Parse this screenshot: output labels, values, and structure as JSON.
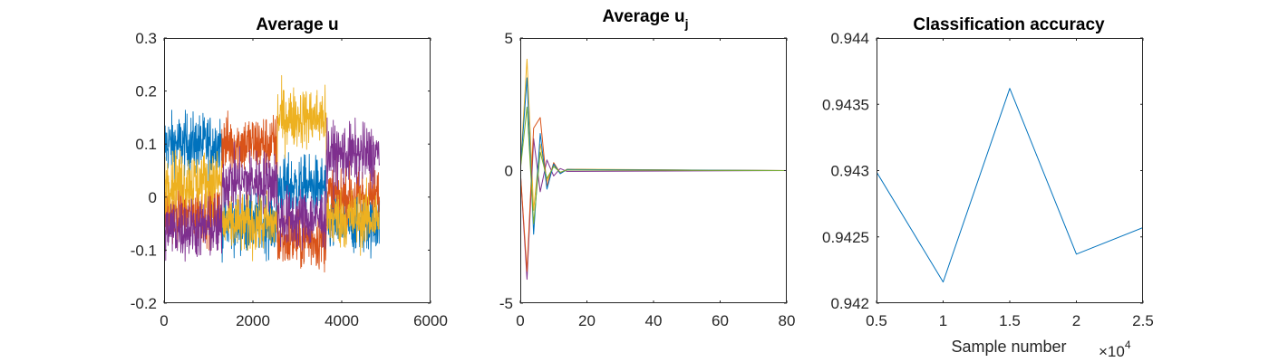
{
  "chart_data": [
    {
      "type": "line",
      "title": "Average u",
      "xlim": [
        0,
        6000
      ],
      "ylim": [
        -0.2,
        0.3
      ],
      "xticks": [
        "0",
        "2000",
        "4000",
        "6000"
      ],
      "yticks": [
        "-0.2",
        "-0.1",
        "0",
        "0.1",
        "0.2",
        "0.3"
      ],
      "grid": false,
      "note": "four noisy series, each switching level at x ≈ 1300, 2550 and 3650; x runs 0–4850",
      "series": [
        {
          "color": "#0072BD",
          "x": [
            0,
            1300,
            2550,
            3650,
            4850
          ],
          "y": [
            0.1,
            -0.05,
            0.02,
            -0.05,
            -0.05
          ]
        },
        {
          "color": "#D95319",
          "x": [
            0,
            1300,
            2550,
            3650,
            4850
          ],
          "y": [
            -0.03,
            0.1,
            -0.08,
            0.0,
            0.0
          ]
        },
        {
          "color": "#EDB120",
          "x": [
            0,
            1300,
            2550,
            3650,
            4850
          ],
          "y": [
            0.03,
            -0.05,
            0.15,
            -0.04,
            -0.04
          ]
        },
        {
          "color": "#7E2F8E",
          "x": [
            0,
            1300,
            2550,
            3650,
            4850
          ],
          "y": [
            -0.06,
            0.03,
            -0.04,
            0.08,
            0.08
          ]
        }
      ]
    },
    {
      "type": "line",
      "title": "Average u",
      "title_subscript": "j",
      "xlim": [
        0,
        80
      ],
      "ylim": [
        -5,
        5
      ],
      "xticks": [
        "0",
        "20",
        "40",
        "60",
        "80"
      ],
      "yticks": [
        "-5",
        "0",
        "5"
      ],
      "grid": false,
      "series": [
        {
          "color": "#EDB120",
          "x": [
            0,
            2,
            4,
            6,
            8,
            10,
            12,
            14,
            80
          ],
          "y": [
            0,
            4.2,
            -1.5,
            1.0,
            -0.4,
            0.2,
            -0.1,
            0.05,
            0
          ]
        },
        {
          "color": "#7E2F8E",
          "x": [
            0,
            2,
            4,
            6,
            8,
            10,
            12,
            14,
            80
          ],
          "y": [
            0,
            -4.1,
            1.2,
            -0.8,
            0.4,
            -0.2,
            0.08,
            -0.03,
            0
          ]
        },
        {
          "color": "#D95319",
          "x": [
            0,
            2,
            4,
            6,
            8,
            10,
            12,
            14,
            80
          ],
          "y": [
            0,
            -3.8,
            1.6,
            2.0,
            -0.6,
            0.3,
            -0.1,
            0.04,
            0
          ]
        },
        {
          "color": "#0072BD",
          "x": [
            0,
            2,
            4,
            6,
            8,
            10,
            12,
            14,
            80
          ],
          "y": [
            0,
            3.5,
            -2.4,
            1.4,
            -0.7,
            0.25,
            -0.12,
            0.04,
            0
          ]
        },
        {
          "color": "#77AC30",
          "x": [
            0,
            2,
            4,
            6,
            8,
            10,
            12,
            14,
            80
          ],
          "y": [
            0,
            2.4,
            -2.0,
            0.7,
            -0.3,
            0.15,
            -0.06,
            0.02,
            0
          ]
        }
      ]
    },
    {
      "type": "line",
      "title": "Classification accuracy",
      "xlabel": "Sample number",
      "x_multiplier": "×10",
      "x_multiplier_exp": "4",
      "xlim": [
        0.5,
        2.5
      ],
      "ylim": [
        0.942,
        0.944
      ],
      "xticks": [
        "0.5",
        "1",
        "1.5",
        "2",
        "2.5"
      ],
      "yticks": [
        "0.942",
        "0.9425",
        "0.943",
        "0.9435",
        "0.944"
      ],
      "grid": false,
      "series": [
        {
          "color": "#0072BD",
          "x": [
            0.5,
            1,
            1.5,
            2,
            2.5
          ],
          "y": [
            0.94299,
            0.94216,
            0.94362,
            0.94237,
            0.94257
          ]
        }
      ]
    }
  ]
}
